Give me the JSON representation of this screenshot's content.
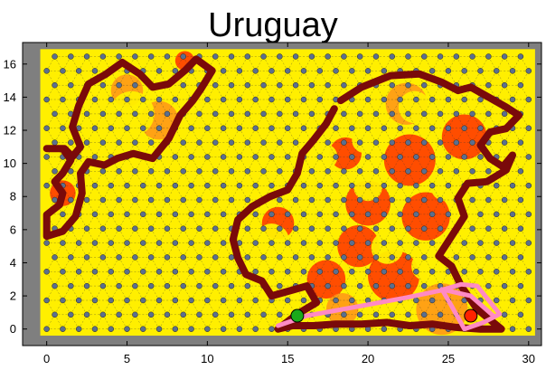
{
  "chart_data": {
    "type": "scatter",
    "title": "Uruguay",
    "xlabel": "",
    "ylabel": "",
    "xlim": [
      -1.5,
      30.8
    ],
    "ylim": [
      -1.0,
      17.3
    ],
    "x_ticks": [
      0,
      5,
      10,
      15,
      20,
      25,
      30
    ],
    "y_ticks": [
      0,
      2,
      4,
      6,
      8,
      10,
      12,
      14,
      16
    ],
    "grid": false,
    "legend": "none",
    "background_color": "#7f7f7f",
    "lattice": {
      "kind": "triangular",
      "x_range": [
        0,
        30
      ],
      "y_range": [
        0,
        16.5
      ],
      "node_color": "#5b6f8f",
      "edge_color": "#333333"
    },
    "heat_colors": {
      "low": "#ffef00",
      "mid": "#ff8c1a",
      "high": "#ff1f00",
      "wall": "#7a0a0a"
    },
    "walls": [
      {
        "name": "northwest-loop",
        "points": [
          [
            0,
            10.9
          ],
          [
            1,
            10.9
          ],
          [
            1.5,
            10.2
          ],
          [
            1,
            9.4
          ],
          [
            0.5,
            8.9
          ],
          [
            1,
            8.2
          ],
          [
            0.8,
            7.5
          ],
          [
            0,
            6.9
          ],
          [
            0,
            5.6
          ],
          [
            1,
            5.9
          ],
          [
            1.8,
            6.8
          ],
          [
            2.2,
            8.2
          ],
          [
            2.1,
            9.4
          ],
          [
            2.6,
            10.1
          ],
          [
            3.6,
            9.9
          ],
          [
            4.4,
            10.3
          ],
          [
            5.4,
            10.6
          ],
          [
            6.6,
            10.3
          ],
          [
            7.6,
            11.5
          ],
          [
            8.3,
            12.9
          ],
          [
            9.1,
            13.8
          ],
          [
            9.6,
            14.5
          ],
          [
            10.3,
            15.6
          ],
          [
            9.3,
            16.3
          ],
          [
            8.6,
            15.6
          ],
          [
            7.6,
            14.8
          ],
          [
            6.6,
            14.6
          ],
          [
            5.8,
            15.4
          ],
          [
            4.7,
            16.1
          ],
          [
            3.7,
            15.4
          ],
          [
            2.6,
            14.8
          ],
          [
            2.0,
            13.5
          ],
          [
            1.6,
            12.2
          ],
          [
            2.1,
            11.0
          ],
          [
            1.6,
            10.4
          ],
          [
            1.1,
            10.9
          ]
        ]
      },
      {
        "name": "central-region",
        "points": [
          [
            18.3,
            13.8
          ],
          [
            19.6,
            14.6
          ],
          [
            21.4,
            15.3
          ],
          [
            23.2,
            15.4
          ],
          [
            24.6,
            14.9
          ],
          [
            25.6,
            14.4
          ],
          [
            26.4,
            14.6
          ],
          [
            27.5,
            14.0
          ],
          [
            28.6,
            13.4
          ],
          [
            29.4,
            12.9
          ],
          [
            28.6,
            12.1
          ],
          [
            27.6,
            11.9
          ],
          [
            27.0,
            11.1
          ],
          [
            27.6,
            10.3
          ],
          [
            28.4,
            9.8
          ],
          [
            29.0,
            10.5
          ],
          [
            28.6,
            9.6
          ],
          [
            27.4,
            8.9
          ],
          [
            26.2,
            8.8
          ],
          [
            25.6,
            7.9
          ],
          [
            26.0,
            6.8
          ],
          [
            25.2,
            5.6
          ],
          [
            24.4,
            4.4
          ],
          [
            25.2,
            3.8
          ],
          [
            25.8,
            2.6
          ],
          [
            26.8,
            1.2
          ],
          [
            27.8,
            0.4
          ],
          [
            28.3,
            0.0
          ],
          [
            27.0,
            0.0
          ],
          [
            25.5,
            0.1
          ],
          [
            24.0,
            0.3
          ],
          [
            22.6,
            0.2
          ],
          [
            21.2,
            0.4
          ],
          [
            19.6,
            0.3
          ],
          [
            18.0,
            0.3
          ],
          [
            16.6,
            0.2
          ],
          [
            15.3,
            0.2
          ],
          [
            14.4,
            0.0
          ],
          [
            15.6,
            0.9
          ],
          [
            16.8,
            1.6
          ],
          [
            16.2,
            2.6
          ],
          [
            15.1,
            2.3
          ],
          [
            14.0,
            2.0
          ],
          [
            13.4,
            2.9
          ],
          [
            12.4,
            3.3
          ],
          [
            11.9,
            4.3
          ],
          [
            11.6,
            5.4
          ],
          [
            11.9,
            6.6
          ],
          [
            12.8,
            7.4
          ],
          [
            13.9,
            8.0
          ],
          [
            15.0,
            8.4
          ],
          [
            15.6,
            9.4
          ],
          [
            15.9,
            10.6
          ],
          [
            16.6,
            11.4
          ],
          [
            17.4,
            12.4
          ],
          [
            17.9,
            13.3
          ]
        ]
      }
    ],
    "markers": [
      {
        "name": "start",
        "x": 15.6,
        "y": 0.8,
        "color": "#1aaa1a"
      },
      {
        "name": "goal",
        "x": 26.4,
        "y": 0.8,
        "color": "#ff2200"
      }
    ],
    "path": {
      "color": "#ff8ac4",
      "points": [
        [
          14.4,
          0.2
        ],
        [
          16.2,
          0.8
        ],
        [
          19.6,
          1.4
        ],
        [
          22.4,
          1.9
        ],
        [
          24.4,
          2.3
        ],
        [
          25.8,
          2.7
        ],
        [
          26.8,
          2.6
        ],
        [
          28.2,
          0.9
        ],
        [
          27.2,
          0.4
        ],
        [
          26.0,
          0.0
        ],
        [
          25.2,
          1.4
        ],
        [
          24.6,
          2.4
        ],
        [
          26.4,
          2.0
        ],
        [
          27.8,
          0.8
        ]
      ]
    },
    "heat": [
      {
        "x": 7.0,
        "y": 12.6,
        "r": 1.2,
        "level": "mid"
      },
      {
        "x": 5.0,
        "y": 14.4,
        "r": 1.0,
        "level": "mid"
      },
      {
        "x": 20.0,
        "y": 7.6,
        "r": 1.4,
        "level": "high"
      },
      {
        "x": 22.6,
        "y": 10.2,
        "r": 1.6,
        "level": "high"
      },
      {
        "x": 26.0,
        "y": 11.6,
        "r": 1.4,
        "level": "high"
      },
      {
        "x": 23.6,
        "y": 6.8,
        "r": 1.5,
        "level": "high"
      },
      {
        "x": 19.4,
        "y": 5.0,
        "r": 1.3,
        "level": "high"
      },
      {
        "x": 21.6,
        "y": 3.2,
        "r": 1.6,
        "level": "high"
      },
      {
        "x": 17.4,
        "y": 3.0,
        "r": 1.2,
        "level": "high"
      },
      {
        "x": 22.4,
        "y": 13.6,
        "r": 1.3,
        "level": "mid"
      },
      {
        "x": 18.6,
        "y": 10.6,
        "r": 1.0,
        "level": "high"
      },
      {
        "x": 14.4,
        "y": 6.4,
        "r": 1.0,
        "level": "high"
      },
      {
        "x": 24.6,
        "y": 1.2,
        "r": 1.6,
        "level": "mid"
      },
      {
        "x": 1.0,
        "y": 8.2,
        "r": 0.8,
        "level": "high"
      },
      {
        "x": 8.6,
        "y": 16.2,
        "r": 0.6,
        "level": "high"
      },
      {
        "x": 18.4,
        "y": 1.2,
        "r": 1.0,
        "level": "mid"
      }
    ],
    "bright_clearings": [
      {
        "x": 5.3,
        "y": 13.0,
        "r": 1.4
      },
      {
        "x": 14.0,
        "y": 5.3,
        "r": 1.1
      },
      {
        "x": 12.8,
        "y": 3.6,
        "r": 0.8
      },
      {
        "x": 17.3,
        "y": 10.4,
        "r": 0.8
      },
      {
        "x": 19.8,
        "y": 11.4,
        "r": 0.8
      },
      {
        "x": 22.9,
        "y": 13.4,
        "r": 1.0
      },
      {
        "x": 24.8,
        "y": 8.6,
        "r": 0.9
      },
      {
        "x": 21.2,
        "y": 4.9,
        "r": 1.0
      },
      {
        "x": 26.5,
        "y": 5.1,
        "r": 1.0
      },
      {
        "x": 23.6,
        "y": 3.8,
        "r": 0.9
      },
      {
        "x": 20.0,
        "y": 8.6,
        "r": 0.9
      }
    ]
  }
}
